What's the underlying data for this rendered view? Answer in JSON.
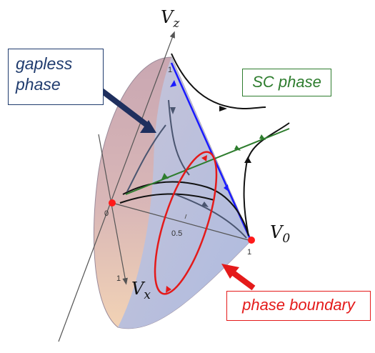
{
  "axes": {
    "vz": {
      "symbol": "V",
      "sub": "z"
    },
    "vx": {
      "symbol": "V",
      "sub": "x"
    },
    "v0": {
      "symbol": "V",
      "sub": "0"
    }
  },
  "ticks": {
    "origin": "0",
    "vz_one": "1",
    "vx_one": "1",
    "v0_half": "0.5",
    "v0_one": "1"
  },
  "labels": {
    "gapless_line1": "gapless",
    "gapless_line2": "phase",
    "sc_phase": "SC phase",
    "phase_boundary": "phase boundary"
  },
  "colors": {
    "gapless_text": "#1f3b6e",
    "sc_text": "#2e7d2e",
    "boundary": "#e41a1a",
    "cone_edge": "#1a1aff",
    "flow": "#111111",
    "fixed_point": "#ff1a1a"
  }
}
